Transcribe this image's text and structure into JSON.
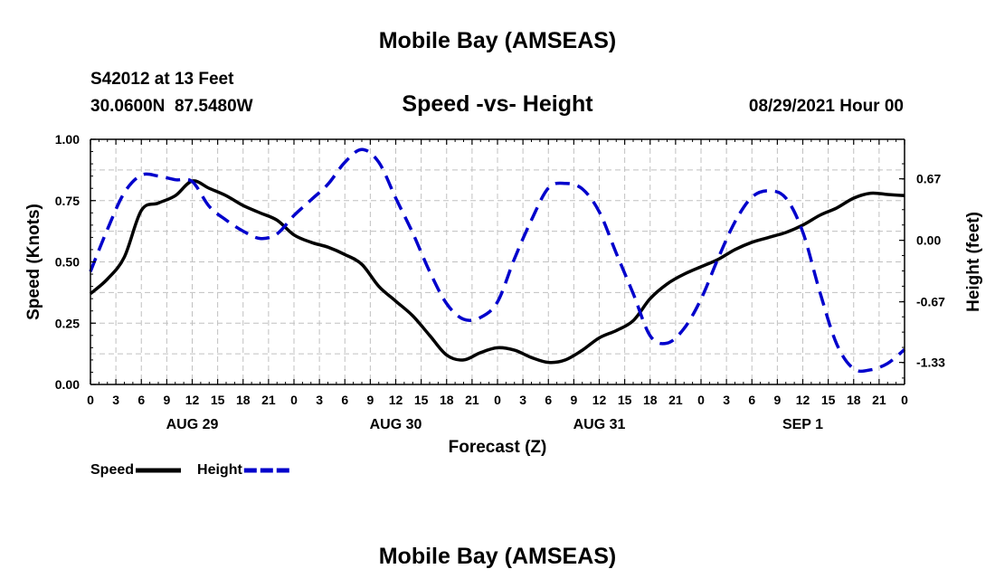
{
  "header": {
    "top_title": "Mobile Bay (AMSEAS)",
    "station_line": "S42012 at 13 Feet",
    "coords_line": "30.0600N  87.5480W",
    "chart_title": "Speed -vs- Height",
    "date_line": "08/29/2021 Hour 00"
  },
  "footer": {
    "bottom_title": "Mobile Bay (AMSEAS)"
  },
  "chart_data": {
    "type": "line",
    "title": "Speed -vs- Height",
    "xlabel": "Forecast (Z)",
    "ylabel": "Speed (Knots)",
    "y2label": "Height (feet)",
    "xlim": [
      0,
      96
    ],
    "ylim": [
      0,
      1.0
    ],
    "y2lim": [
      -1.57,
      1.1
    ],
    "x_ticks": [
      0,
      3,
      6,
      9,
      12,
      15,
      18,
      21,
      24,
      27,
      30,
      33,
      36,
      39,
      42,
      45,
      48,
      51,
      54,
      57,
      60,
      63,
      66,
      69,
      72,
      75,
      78,
      81,
      84,
      87,
      90,
      93,
      96
    ],
    "x_tick_labels": [
      "0",
      "3",
      "6",
      "9",
      "12",
      "15",
      "18",
      "21",
      "0",
      "3",
      "6",
      "9",
      "12",
      "15",
      "18",
      "21",
      "0",
      "3",
      "6",
      "9",
      "12",
      "15",
      "18",
      "21",
      "0",
      "3",
      "6",
      "9",
      "12",
      "15",
      "18",
      "21",
      "0"
    ],
    "day_labels": [
      {
        "x": 12,
        "label": "AUG 29"
      },
      {
        "x": 36,
        "label": "AUG 30"
      },
      {
        "x": 60,
        "label": "AUG 31"
      },
      {
        "x": 84,
        "label": "SEP 1"
      }
    ],
    "y_ticks": [
      0.0,
      0.25,
      0.5,
      0.75,
      1.0
    ],
    "y_tick_labels": [
      "0.00",
      "0.25",
      "0.50",
      "0.75",
      "1.00"
    ],
    "y2_ticks": [
      0.67,
      0.0,
      -0.67,
      -1.33
    ],
    "y2_tick_labels": [
      "0.67",
      "0.00",
      "-0.67",
      "-1.33"
    ],
    "grid": true,
    "legend_position": "bottom-left",
    "series": [
      {
        "name": "Speed",
        "axis": "left",
        "color": "#000000",
        "style": "solid",
        "x": [
          0,
          2,
          4,
          6,
          8,
          10,
          12,
          14,
          16,
          18,
          20,
          22,
          24,
          26,
          28,
          30,
          32,
          34,
          36,
          38,
          40,
          42,
          44,
          46,
          48,
          50,
          52,
          54,
          56,
          58,
          60,
          62,
          64,
          66,
          68,
          70,
          72,
          74,
          76,
          78,
          80,
          82,
          84,
          86,
          88,
          90,
          92,
          94,
          96
        ],
        "values": [
          0.37,
          0.43,
          0.52,
          0.71,
          0.74,
          0.77,
          0.83,
          0.8,
          0.77,
          0.73,
          0.7,
          0.67,
          0.61,
          0.58,
          0.56,
          0.53,
          0.49,
          0.4,
          0.34,
          0.28,
          0.2,
          0.12,
          0.1,
          0.13,
          0.15,
          0.14,
          0.11,
          0.09,
          0.1,
          0.14,
          0.19,
          0.22,
          0.26,
          0.35,
          0.41,
          0.45,
          0.48,
          0.51,
          0.55,
          0.58,
          0.6,
          0.62,
          0.65,
          0.69,
          0.72,
          0.76,
          0.78,
          0.775,
          0.77
        ]
      },
      {
        "name": "Height",
        "axis": "right",
        "color": "#0000cc",
        "style": "dashed",
        "x": [
          0,
          2,
          4,
          6,
          8,
          10,
          12,
          14,
          16,
          18,
          20,
          22,
          24,
          26,
          28,
          30,
          32,
          34,
          36,
          38,
          40,
          42,
          44,
          46,
          48,
          50,
          52,
          54,
          56,
          58,
          60,
          62,
          64,
          66,
          68,
          70,
          72,
          74,
          76,
          78,
          80,
          82,
          84,
          86,
          88,
          90,
          92,
          94,
          96
        ],
        "values": [
          -0.34,
          0.12,
          0.52,
          0.71,
          0.7,
          0.66,
          0.64,
          0.37,
          0.22,
          0.1,
          0.02,
          0.07,
          0.27,
          0.44,
          0.61,
          0.85,
          0.99,
          0.85,
          0.46,
          0.08,
          -0.34,
          -0.69,
          -0.86,
          -0.84,
          -0.67,
          -0.2,
          0.22,
          0.57,
          0.62,
          0.56,
          0.31,
          -0.14,
          -0.58,
          -1.04,
          -1.12,
          -0.96,
          -0.64,
          -0.2,
          0.2,
          0.47,
          0.54,
          0.46,
          0.09,
          -0.56,
          -1.13,
          -1.4,
          -1.41,
          -1.34,
          -1.19
        ]
      }
    ]
  }
}
